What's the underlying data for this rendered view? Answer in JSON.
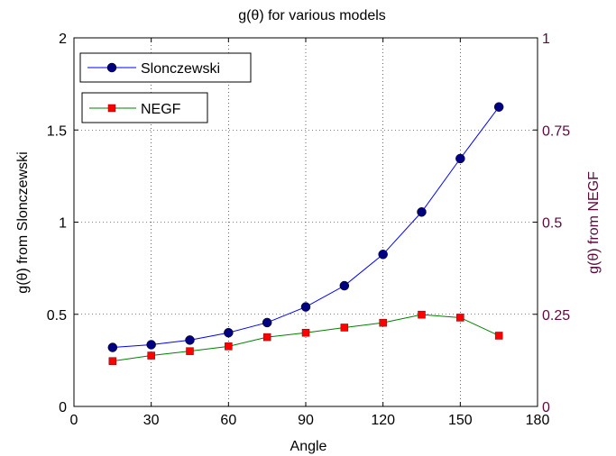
{
  "chart_data": {
    "type": "line",
    "title": "g(θ) for various models",
    "xlabel": "Angle",
    "ylabel_left": "g(θ) from Slonczewski",
    "ylabel_right": "g(θ) from NEGF",
    "xlim": [
      0,
      180
    ],
    "ylim_left": [
      0,
      2
    ],
    "ylim_right": [
      0,
      1
    ],
    "x_ticks": [
      "0",
      "30",
      "60",
      "90",
      "120",
      "150",
      "180"
    ],
    "y_left_ticks": [
      "0",
      "0.5",
      "1",
      "1.5",
      "2"
    ],
    "y_right_ticks": [
      "0",
      "0.25",
      "0.5",
      "0.75",
      "1"
    ],
    "grid": true,
    "series": [
      {
        "name": "Slonczewski",
        "axis": "left",
        "color": "#0000ff",
        "marker": "circle",
        "marker_color": "#000080",
        "x": [
          15,
          30,
          45,
          60,
          75,
          90,
          105,
          120,
          135,
          150,
          165
        ],
        "values": [
          0.32,
          0.335,
          0.36,
          0.4,
          0.455,
          0.54,
          0.655,
          0.825,
          1.055,
          1.345,
          1.625
        ]
      },
      {
        "name": "NEGF",
        "axis": "right",
        "color": "#008000",
        "marker": "square",
        "marker_color": "#ff0000",
        "x": [
          15,
          30,
          45,
          60,
          75,
          90,
          105,
          120,
          135,
          150,
          165
        ],
        "values": [
          0.123,
          0.138,
          0.15,
          0.163,
          0.188,
          0.2,
          0.214,
          0.227,
          0.249,
          0.241,
          0.192
        ]
      }
    ]
  }
}
